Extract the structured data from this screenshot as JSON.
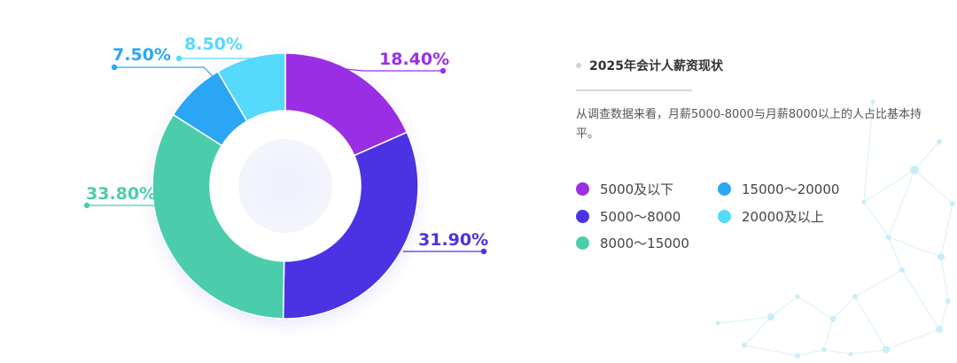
{
  "chart_data": {
    "type": "pie",
    "variant": "donut",
    "start_angle_deg": 0,
    "direction": "clockwise",
    "slices": [
      {
        "name": "5000及以下",
        "value": 18.4,
        "label": "18.40%",
        "color": "#9a2fe4"
      },
      {
        "name": "5000～8000",
        "value": 31.9,
        "label": "31.90%",
        "color": "#4b33e3"
      },
      {
        "name": "8000～15000",
        "value": 33.8,
        "label": "33.80%",
        "color": "#4ccdac"
      },
      {
        "name": "15000～20000",
        "value": 7.5,
        "label": "7.50%",
        "color": "#2aa6f5"
      },
      {
        "name": "20000及以上",
        "value": 8.5,
        "label": "8.50%",
        "color": "#55d9fd"
      }
    ]
  },
  "info": {
    "title": "2025年会计人薪资现状",
    "description": "从调查数据来看，月薪5000-8000与月薪8000以上的人占比基本持平。"
  },
  "legend": {
    "items": [
      {
        "label": "5000及以下",
        "color": "#9a2fe4"
      },
      {
        "label": "5000～8000",
        "color": "#4b33e3"
      },
      {
        "label": "8000～15000",
        "color": "#4ccdac"
      },
      {
        "label": "15000～20000",
        "color": "#2aa6f5"
      },
      {
        "label": "20000及以上",
        "color": "#55d9fd"
      }
    ]
  }
}
